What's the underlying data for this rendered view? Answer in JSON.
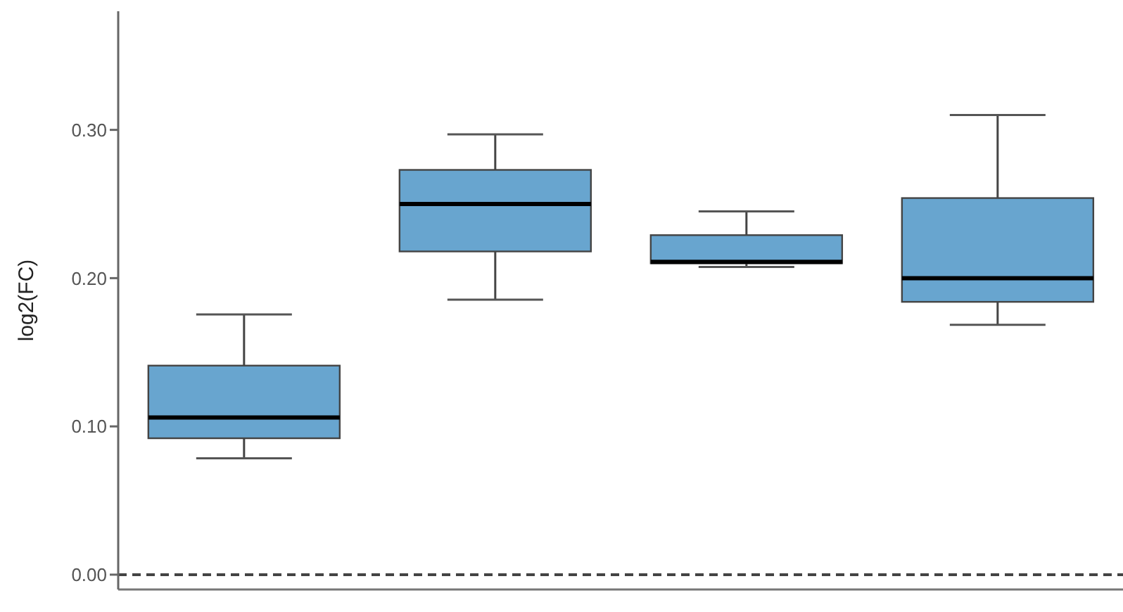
{
  "chart_data": {
    "type": "box",
    "ylabel": "log2(FC)",
    "categories": [
      null,
      null,
      null,
      null
    ],
    "boxes": [
      {
        "low": 0.0785,
        "q1": 0.092,
        "median": 0.106,
        "q3": 0.141,
        "high": 0.1755
      },
      {
        "low": 0.1855,
        "q1": 0.218,
        "median": 0.25,
        "q3": 0.273,
        "high": 0.297
      },
      {
        "low": 0.2075,
        "q1": 0.21,
        "median": 0.211,
        "q3": 0.229,
        "high": 0.245
      },
      {
        "low": 0.1685,
        "q1": 0.184,
        "median": 0.2,
        "q3": 0.254,
        "high": 0.31
      }
    ],
    "color": "#68a5cf",
    "ylim": [
      -0.01,
      0.38
    ],
    "yticks": [
      {
        "value": 0,
        "label": "0.00"
      },
      {
        "value": 0.1,
        "label": "0.10"
      },
      {
        "value": 0.2,
        "label": "0.20"
      },
      {
        "value": 0.3,
        "label": "0.30"
      }
    ],
    "ref_lines": [
      {
        "axis": "y",
        "value": 0,
        "label": null,
        "color": "#444444",
        "line_style": "dashed"
      }
    ],
    "grid": false,
    "legend": false,
    "tick_labels": "y"
  }
}
